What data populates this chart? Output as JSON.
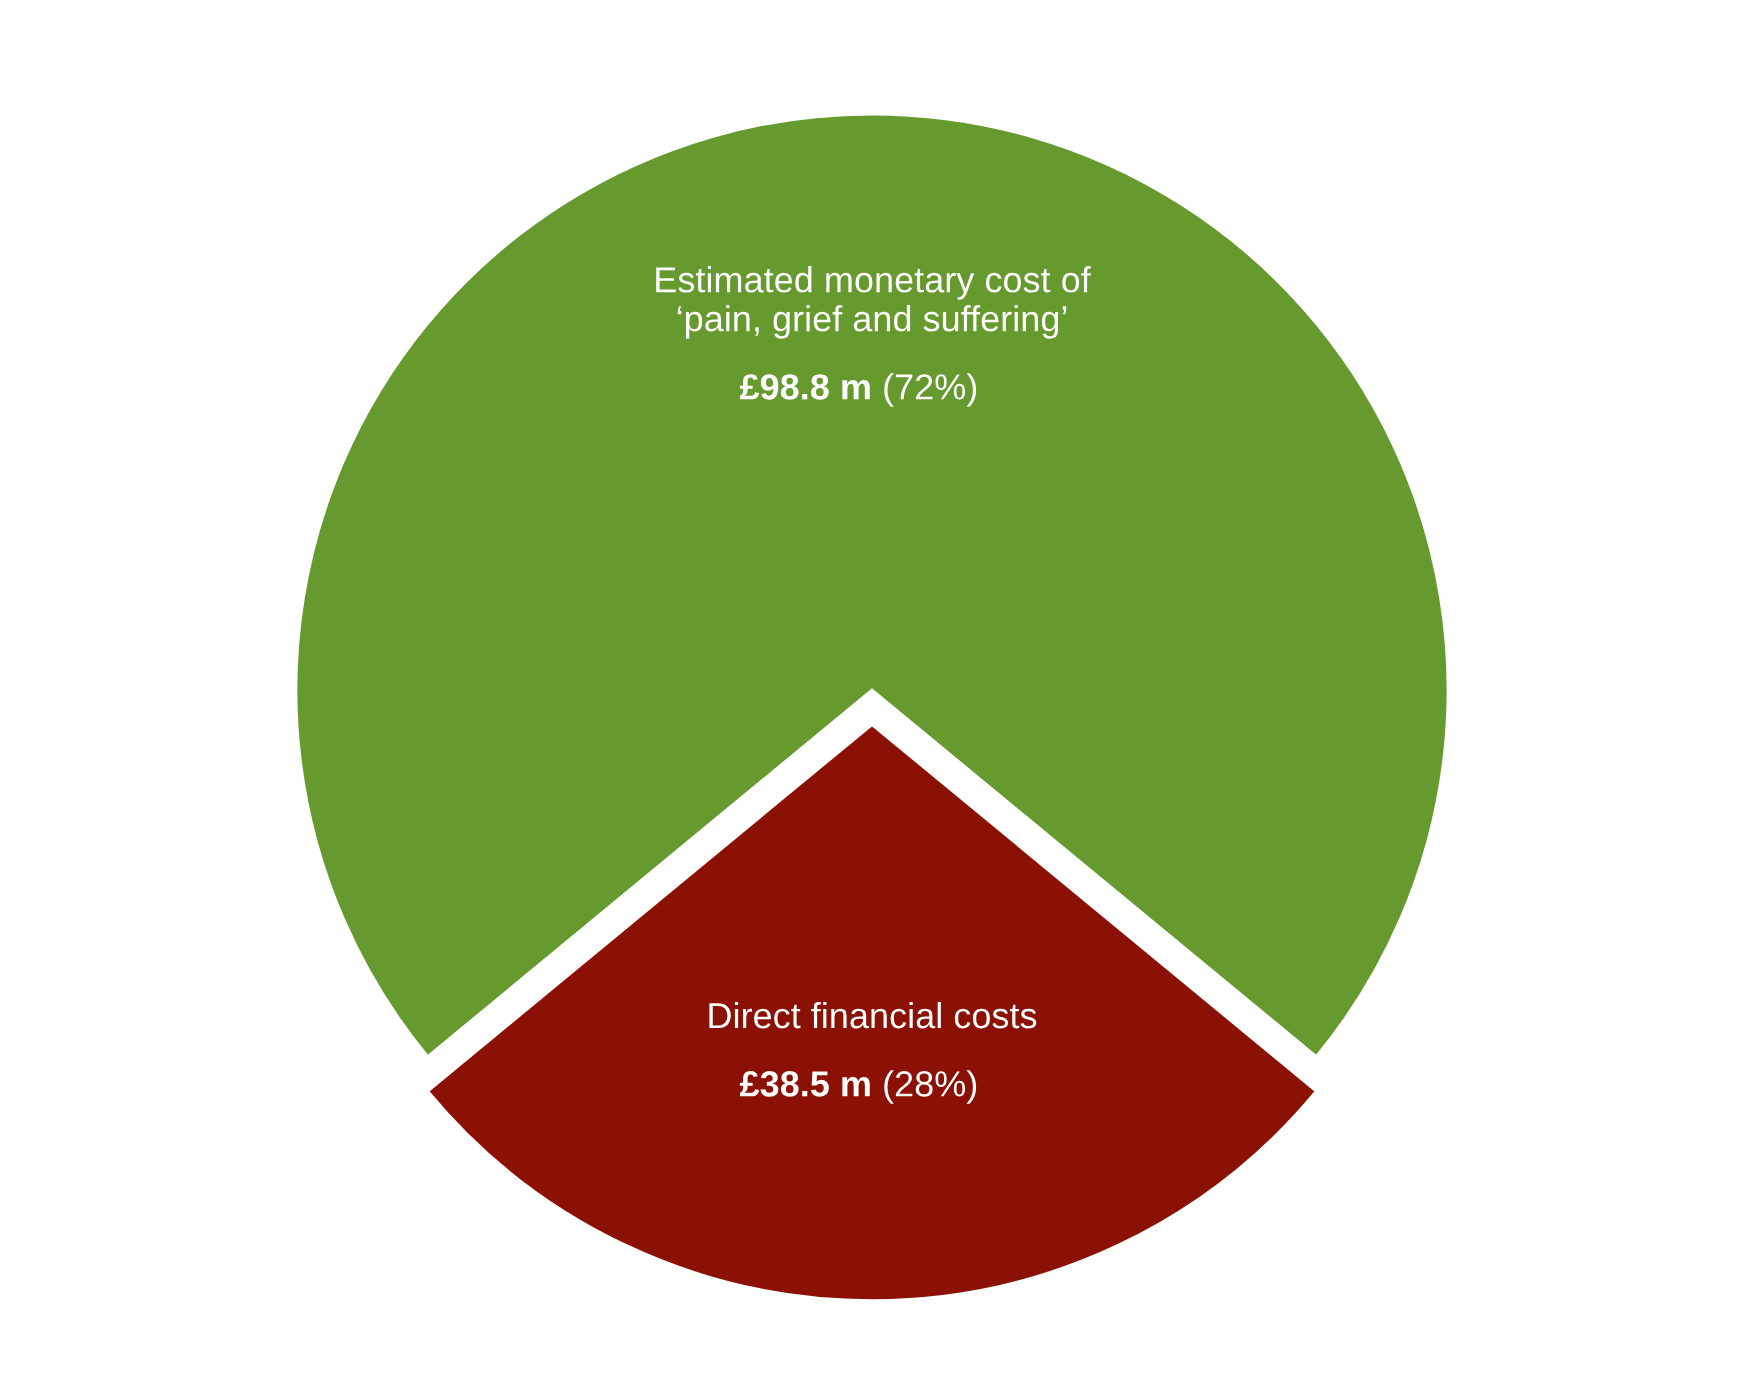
{
  "chart_data": {
    "type": "pie",
    "categories": [
      "Estimated monetary cost of\n‘pain, grief and suffering’",
      "Direct financial costs"
    ],
    "values": [
      98.8,
      38.5
    ],
    "value_labels": [
      "£98.8 m (72%)",
      "£38.5 m (28%)"
    ],
    "colors": [
      "#66992e",
      "#8b1104"
    ]
  }
}
